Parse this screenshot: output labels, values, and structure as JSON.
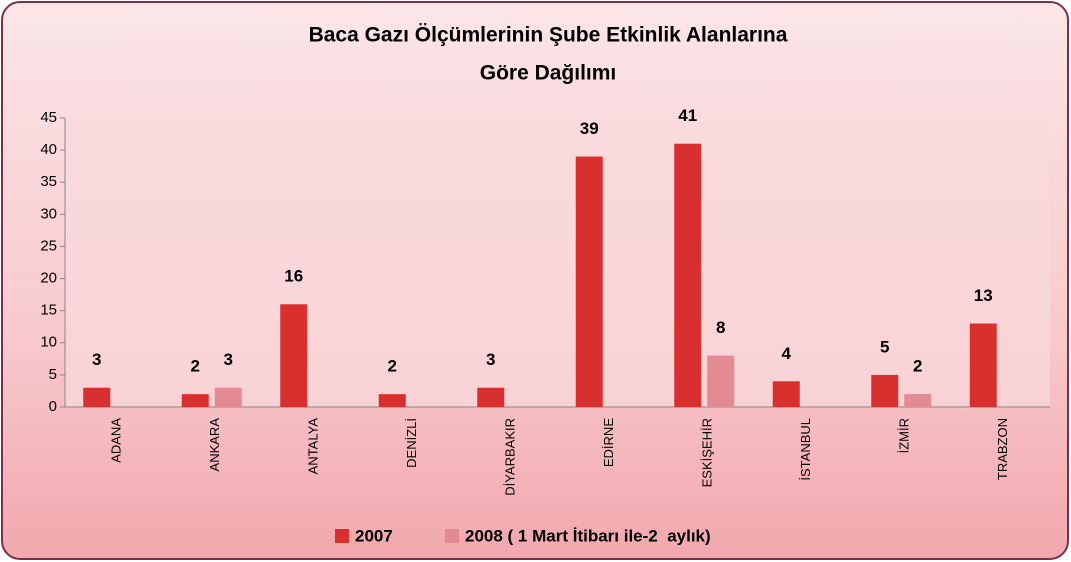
{
  "chart_data": {
    "type": "bar",
    "title": [
      "Baca Gazı Ölçümlerinin Şube Etkinlik Alanlarına",
      "Göre Dağılımı"
    ],
    "categories": [
      "ADANA",
      "ANKARA",
      "ANTALYA",
      "DENİZLİ",
      "DİYARBAKIR",
      "EDİRNE",
      "ESKİŞEHİR",
      "İSTANBUL",
      "İZMİR",
      "TRABZON"
    ],
    "series": [
      {
        "name": "2007",
        "color": "#d8302e",
        "values": [
          3,
          2,
          16,
          2,
          3,
          39,
          41,
          4,
          5,
          13
        ]
      },
      {
        "name": "2008 ( 1 Mart İtibarı ile-2  aylık)",
        "color": "#e48a92",
        "values": [
          null,
          3,
          null,
          null,
          null,
          null,
          8,
          null,
          2,
          null
        ]
      }
    ],
    "ylim": [
      0,
      45
    ],
    "yticks": [
      0,
      5,
      10,
      15,
      20,
      25,
      30,
      35,
      40,
      45
    ],
    "grid": false,
    "legend": "bottom"
  }
}
